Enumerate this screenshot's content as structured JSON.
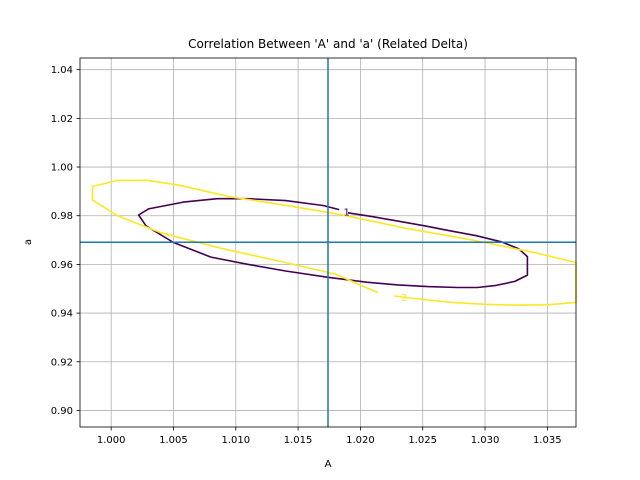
{
  "chart_data": {
    "type": "contour",
    "title": "Correlation Between 'A' and 'a' (Related Delta)",
    "xlabel": "A",
    "ylabel": "a",
    "xlim": [
      0.9975,
      1.0373
    ],
    "ylim": [
      0.8932,
      1.0448
    ],
    "xticks": [
      "1.000",
      "1.005",
      "1.010",
      "1.015",
      "1.020",
      "1.025",
      "1.030",
      "1.035"
    ],
    "yticks": [
      "0.90",
      "0.92",
      "0.94",
      "0.96",
      "0.98",
      "1.00",
      "1.02",
      "1.04"
    ],
    "grid": true,
    "best_fit": {
      "x": 1.0174,
      "y": 0.9691,
      "color": "#1f77b4"
    },
    "contours": [
      {
        "level": "1",
        "color": "#440154",
        "label_at": {
          "x": 1.0189,
          "y": 0.9815
        },
        "points": [
          [
            1.019,
            0.9812
          ],
          [
            1.021,
            0.9796
          ],
          [
            1.023,
            0.9778
          ],
          [
            1.0252,
            0.9758
          ],
          [
            1.0272,
            0.9738
          ],
          [
            1.0293,
            0.9718
          ],
          [
            1.0313,
            0.9693
          ],
          [
            1.0327,
            0.9664
          ],
          [
            1.0334,
            0.9632
          ],
          [
            1.0334,
            0.9556
          ],
          [
            1.0324,
            0.953
          ],
          [
            1.0308,
            0.9513
          ],
          [
            1.0294,
            0.9505
          ],
          [
            1.0278,
            0.9505
          ],
          [
            1.0254,
            0.9509
          ],
          [
            1.023,
            0.9516
          ],
          [
            1.0205,
            0.9527
          ],
          [
            1.0174,
            0.9547
          ],
          [
            1.014,
            0.9573
          ],
          [
            1.011,
            0.96
          ],
          [
            1.008,
            0.963
          ],
          [
            1.005,
            0.969
          ],
          [
            1.0028,
            0.9758
          ],
          [
            1.0022,
            0.9803
          ],
          [
            1.003,
            0.9828
          ],
          [
            1.0058,
            0.9856
          ],
          [
            1.0085,
            0.987
          ],
          [
            1.011,
            0.987
          ],
          [
            1.014,
            0.9862
          ],
          [
            1.017,
            0.9842
          ],
          [
            1.0183,
            0.9825
          ]
        ]
      },
      {
        "level": "2",
        "color": "#fde725",
        "label_at": {
          "x": 1.0235,
          "y": 0.9465
        },
        "points": [
          [
            1.0227,
            0.947
          ],
          [
            1.025,
            0.9456
          ],
          [
            1.0275,
            0.9443
          ],
          [
            1.03,
            0.9436
          ],
          [
            1.0325,
            0.9433
          ],
          [
            1.035,
            0.9434
          ],
          [
            1.0373,
            0.9444
          ],
          [
            1.0373,
            0.9608
          ],
          [
            1.034,
            0.9648
          ],
          [
            1.029,
            0.97
          ],
          [
            1.0235,
            0.975
          ],
          [
            1.0185,
            0.9804
          ],
          [
            1.014,
            0.9843
          ],
          [
            1.0095,
            0.9878
          ],
          [
            1.0055,
            0.9925
          ],
          [
            1.003,
            0.9945
          ],
          [
            1.0005,
            0.9945
          ],
          [
            0.9985,
            0.992
          ],
          [
            0.9985,
            0.9865
          ],
          [
            1.0005,
            0.98
          ],
          [
            1.004,
            0.973
          ],
          [
            1.009,
            0.9664
          ],
          [
            1.014,
            0.9608
          ],
          [
            1.018,
            0.956
          ],
          [
            1.0214,
            0.9484
          ]
        ]
      }
    ]
  }
}
